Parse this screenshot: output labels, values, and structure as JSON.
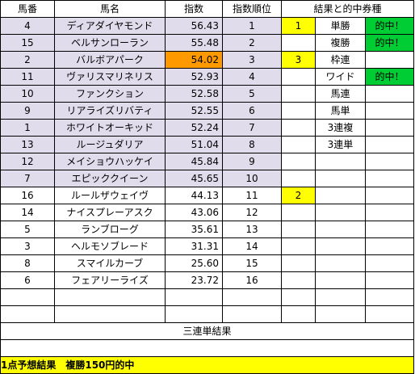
{
  "header": {
    "col_number": "馬番",
    "col_name": "馬名",
    "col_index": "指数",
    "col_rank": "指数順位",
    "col_result": "結果と的中券種"
  },
  "rows": [
    {
      "number": "4",
      "name": "ディアダイヤモンド",
      "index": "56.43",
      "rank": "1",
      "result": "1",
      "bet": "単勝",
      "hit": "的中！"
    },
    {
      "number": "15",
      "name": "ベルサンローラン",
      "index": "55.48",
      "rank": "2",
      "result": "",
      "bet": "複勝",
      "hit": "的中！"
    },
    {
      "number": "2",
      "name": "バルボアパーク",
      "index": "54.02",
      "rank": "3",
      "result": "3",
      "bet": "枠連",
      "hit": ""
    },
    {
      "number": "11",
      "name": "ヴァリスマリネリス",
      "index": "52.93",
      "rank": "4",
      "result": "",
      "bet": "ワイド",
      "hit": "的中！"
    },
    {
      "number": "10",
      "name": "ファンクション",
      "index": "52.58",
      "rank": "5",
      "result": "",
      "bet": "馬連",
      "hit": ""
    },
    {
      "number": "9",
      "name": "リアライズリバティ",
      "index": "52.55",
      "rank": "6",
      "result": "",
      "bet": "馬単",
      "hit": ""
    },
    {
      "number": "1",
      "name": "ホワイトオーキッド",
      "index": "52.24",
      "rank": "7",
      "result": "",
      "bet": "3連複",
      "hit": ""
    },
    {
      "number": "13",
      "name": "ルージュダリア",
      "index": "51.04",
      "rank": "8",
      "result": "",
      "bet": "3連単",
      "hit": ""
    },
    {
      "number": "12",
      "name": "メイショウハッケイ",
      "index": "45.84",
      "rank": "9",
      "result": "",
      "bet": "",
      "hit": ""
    },
    {
      "number": "7",
      "name": "エピッククイーン",
      "index": "45.65",
      "rank": "10",
      "result": "",
      "bet": "",
      "hit": ""
    },
    {
      "number": "16",
      "name": "ルールザウェイヴ",
      "index": "44.13",
      "rank": "11",
      "result": "2",
      "bet": "",
      "hit": ""
    },
    {
      "number": "14",
      "name": "ナイスプレーアスク",
      "index": "43.06",
      "rank": "12",
      "result": "",
      "bet": "",
      "hit": ""
    },
    {
      "number": "5",
      "name": "ランブローグ",
      "index": "35.61",
      "rank": "13",
      "result": "",
      "bet": "",
      "hit": ""
    },
    {
      "number": "3",
      "name": "ヘルモソブレード",
      "index": "31.31",
      "rank": "14",
      "result": "",
      "bet": "",
      "hit": ""
    },
    {
      "number": "8",
      "name": "スマイルカーブ",
      "index": "25.60",
      "rank": "15",
      "result": "",
      "bet": "",
      "hit": ""
    },
    {
      "number": "6",
      "name": "フェアリーライズ",
      "index": "23.72",
      "rank": "16",
      "result": "",
      "bet": "",
      "hit": ""
    },
    {
      "number": "",
      "name": "",
      "index": "",
      "rank": "",
      "result": "",
      "bet": "",
      "hit": ""
    },
    {
      "number": "",
      "name": "",
      "index": "",
      "rank": "",
      "result": "",
      "bet": "",
      "hit": ""
    }
  ],
  "trifecta_label": "三連単結果",
  "summary": "1点予想結果　複勝150円的中",
  "colors": {
    "purple_row": "#e0dcec",
    "orange_highlight": "#ff9900",
    "yellow_highlight": "#ffff00",
    "green_hit": "#00cc33"
  }
}
